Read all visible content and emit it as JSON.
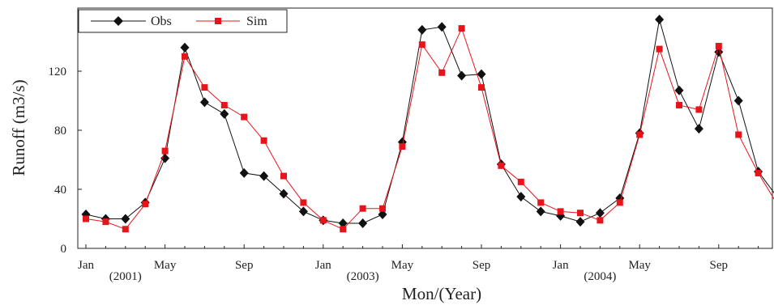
{
  "chart_data": {
    "type": "line",
    "xlabel": "Mon/(Year)",
    "ylabel": "Runoff  (m3/s)",
    "ylim": [
      0,
      155
    ],
    "yticks": [
      0,
      40,
      80,
      120
    ],
    "month_ticks": [
      "Jan",
      "May",
      "Sep",
      "Jan",
      "May",
      "Sep",
      "Jan",
      "May",
      "Sep"
    ],
    "year_labels": [
      "(2001)",
      "(2003)",
      "(2004)"
    ],
    "grid": false,
    "legend_position": "top-left",
    "series": [
      {
        "name": "Obs",
        "color": "#111111",
        "marker": "diamond",
        "values": [
          23,
          20,
          20,
          31,
          61,
          136,
          99,
          91,
          51,
          49,
          37,
          25,
          19,
          17,
          17,
          23,
          72,
          148,
          150,
          117,
          118,
          57,
          35,
          25,
          22,
          18,
          24,
          34,
          78,
          155,
          107,
          81,
          133,
          100,
          52,
          34
        ]
      },
      {
        "name": "Sim",
        "color": "#e8141c",
        "marker": "square",
        "values": [
          20,
          18,
          13,
          30,
          66,
          130,
          109,
          97,
          89,
          73,
          49,
          31,
          19,
          13,
          27,
          27,
          69,
          138,
          119,
          149,
          109,
          56,
          45,
          31,
          25,
          24,
          19,
          31,
          77,
          135,
          97,
          94,
          137,
          77,
          51,
          29
        ]
      }
    ]
  }
}
